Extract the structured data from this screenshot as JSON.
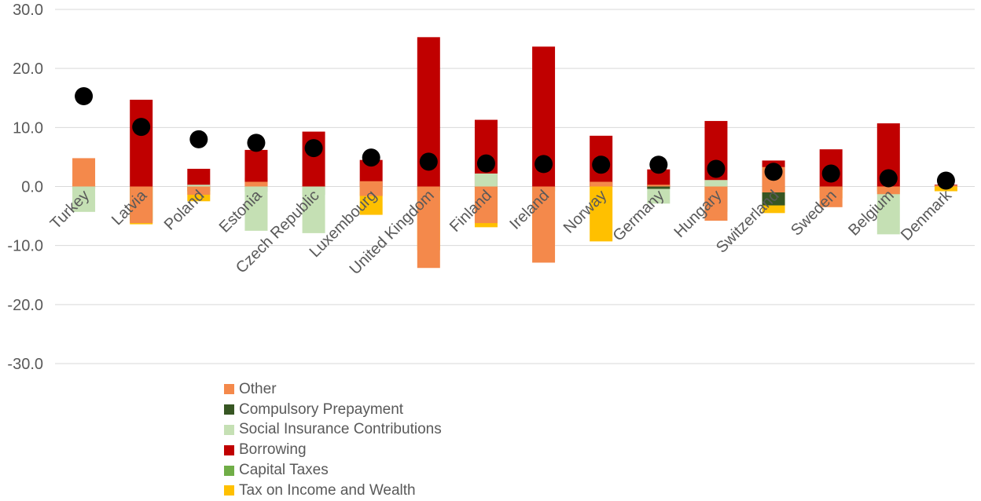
{
  "chart_data": {
    "type": "bar",
    "stacked": true,
    "title": "",
    "xlabel": "",
    "ylabel": "",
    "ylim": [
      -30,
      30
    ],
    "yticks": [
      30,
      20,
      10,
      0,
      -10,
      -20,
      -30
    ],
    "ytick_labels": [
      "30.0",
      "20.0",
      "10.0",
      "0.0",
      "-10.0",
      "-20.0",
      "-30.0"
    ],
    "categories": [
      "Turkey",
      "Latvia",
      "Poland",
      "Estonia",
      "Czech Republic",
      "Luxembourg",
      "United Kingdom",
      "Finland",
      "Ireland",
      "Norway",
      "Germany",
      "Hungary",
      "Switzerland",
      "Sweden",
      "Belgium",
      "Denmark"
    ],
    "series": [
      {
        "name": "Tax on Income and Wealth",
        "color": "#FFC000",
        "values": [
          [
            0,
            0.6
          ],
          [
            -6.4,
            0
          ],
          [
            -2.5,
            0
          ],
          [
            0.8,
            1.5
          ],
          [
            0,
            0.3
          ],
          [
            -4.8,
            0
          ],
          [
            -10.8,
            0
          ],
          [
            -6.9,
            0
          ],
          [
            -9.8,
            0
          ],
          [
            -9.3,
            0
          ],
          [
            0,
            0.2
          ],
          [
            -2.0,
            0
          ],
          [
            -4.5,
            0
          ],
          [
            -2.0,
            0
          ],
          [
            -0.8,
            0
          ],
          [
            -0.8,
            0
          ]
        ]
      },
      {
        "name": "Capital Taxes",
        "color": "#70AD47",
        "values": [
          [
            -0.4,
            0
          ],
          [
            -5.8,
            0
          ],
          [
            -0.8,
            0
          ],
          [
            -0.9,
            0
          ],
          [
            -1.4,
            0
          ],
          [
            -0.4,
            0
          ],
          [
            -0.7,
            0
          ],
          [
            -0.3,
            0
          ],
          [
            -0.8,
            0
          ],
          [
            0,
            0
          ],
          [
            0,
            0
          ],
          [
            -4.3,
            0
          ],
          [
            0,
            0
          ],
          [
            -0.6,
            0
          ],
          [
            0,
            0
          ],
          [
            0,
            0
          ]
        ]
      },
      {
        "name": "Borrowing",
        "color": "#C00000",
        "values": [
          [
            0,
            0
          ],
          [
            0,
            14.7
          ],
          [
            0,
            3.0
          ],
          [
            0,
            6.2
          ],
          [
            0,
            9.3
          ],
          [
            0,
            4.5
          ],
          [
            0,
            25.3
          ],
          [
            0,
            11.3
          ],
          [
            0,
            23.7
          ],
          [
            0,
            8.6
          ],
          [
            0,
            2.9
          ],
          [
            0,
            11.1
          ],
          [
            0,
            4.4
          ],
          [
            0,
            6.3
          ],
          [
            0,
            10.7
          ],
          [
            0,
            0.3
          ]
        ]
      },
      {
        "name": "Social Insurance Contributions",
        "color": "#C5E0B4",
        "values": [
          [
            -4.3,
            0
          ],
          [
            0,
            0
          ],
          [
            0,
            0.3
          ],
          [
            -7.5,
            0
          ],
          [
            -7.9,
            0
          ],
          [
            -0.8,
            0
          ],
          [
            0,
            0
          ],
          [
            0,
            2.2
          ],
          [
            0,
            0
          ],
          [
            0,
            0
          ],
          [
            -2.9,
            0
          ],
          [
            0,
            1.1
          ],
          [
            0,
            0
          ],
          [
            0,
            0
          ],
          [
            -8.1,
            0
          ],
          [
            0,
            0
          ]
        ]
      },
      {
        "name": "Compulsory Prepayment",
        "color": "#375623",
        "values": [
          [
            0,
            0
          ],
          [
            0,
            0
          ],
          [
            0,
            0
          ],
          [
            0,
            0
          ],
          [
            0,
            0
          ],
          [
            0,
            0
          ],
          [
            0,
            0
          ],
          [
            0,
            0
          ],
          [
            0,
            0
          ],
          [
            0,
            0
          ],
          [
            -0.4,
            0
          ],
          [
            0,
            0
          ],
          [
            -3.2,
            0
          ],
          [
            0,
            0
          ],
          [
            0,
            0
          ],
          [
            0,
            0.2
          ]
        ]
      },
      {
        "name": "Other",
        "color": "#F4894B",
        "values": [
          [
            0,
            4.8
          ],
          [
            -6.2,
            0
          ],
          [
            -1.4,
            0
          ],
          [
            0,
            0.8
          ],
          [
            0,
            0
          ],
          [
            -1.6,
            0.9
          ],
          [
            -13.8,
            0
          ],
          [
            -6.2,
            0
          ],
          [
            -12.9,
            0
          ],
          [
            0,
            0.8
          ],
          [
            0,
            0.3
          ],
          [
            -5.8,
            0
          ],
          [
            -1.0,
            3.3
          ],
          [
            -3.5,
            0
          ],
          [
            -1.3,
            0
          ],
          [
            0,
            0.2
          ]
        ]
      }
    ],
    "marker_series": {
      "name": "Net",
      "color": "#000000",
      "values": [
        15.3,
        10.1,
        8.0,
        7.4,
        6.5,
        4.9,
        4.2,
        3.9,
        3.8,
        3.7,
        3.7,
        3.0,
        2.5,
        2.2,
        1.4,
        1.0
      ]
    },
    "legend": {
      "placement": "bottom-left",
      "items": [
        {
          "label": "Other",
          "color": "#F4894B"
        },
        {
          "label": "Compulsory Prepayment",
          "color": "#375623"
        },
        {
          "label": "Social Insurance Contributions",
          "color": "#C5E0B4"
        },
        {
          "label": "Borrowing",
          "color": "#C00000"
        },
        {
          "label": "Capital Taxes",
          "color": "#70AD47"
        },
        {
          "label": "Tax on Income and Wealth",
          "color": "#FFC000"
        }
      ]
    }
  }
}
